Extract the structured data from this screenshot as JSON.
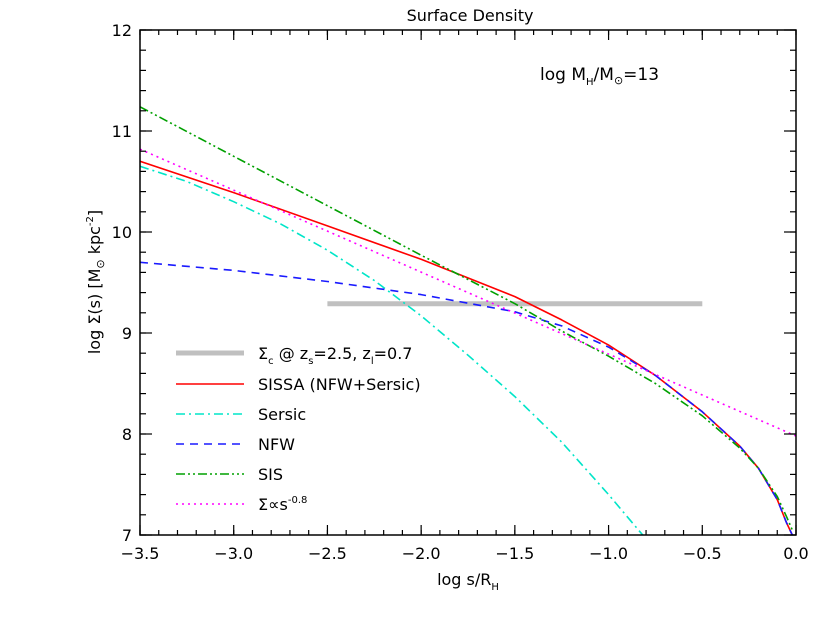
{
  "chart_data": {
    "type": "line",
    "title": "Surface Density",
    "xlabel": "log s/R",
    "xlabel_sub": "H",
    "ylabel": "log Σ(s) [M",
    "ylabel_sun": "⊙",
    "ylabel_tail": " kpc",
    "ylabel_exp": "-2",
    "ylabel_close": "]",
    "xlim": [
      -3.5,
      0.0
    ],
    "ylim": [
      7,
      12
    ],
    "xticks": [
      "−3.5",
      "−3.0",
      "−2.5",
      "−2.0",
      "−1.5",
      "−1.0",
      "−0.5",
      "0.0"
    ],
    "yticks": [
      "7",
      "8",
      "9",
      "10",
      "11",
      "12"
    ],
    "annotation": {
      "prefix": "log M",
      "sub1": "H",
      "mid": "/M",
      "sun": "⊙",
      "suffix": "=13"
    },
    "colors": {
      "sigma_c": "#c0c0c0",
      "sissa": "#ff0000",
      "sersic": "#00e5c8",
      "nfw": "#1a1aff",
      "sis": "#00a000",
      "powerlaw": "#ff00ff"
    },
    "legend": {
      "position": "lower-left",
      "entries": [
        {
          "key": "sigma_c",
          "label": "Σ",
          "sub": "c",
          "rest": " @ z",
          "sub2": "s",
          "rest2": "=2.5, z",
          "sub3": "l",
          "rest3": "=0.7"
        },
        {
          "key": "sissa",
          "label": "SISSA (NFW+Sersic)"
        },
        {
          "key": "sersic",
          "label": "Sersic"
        },
        {
          "key": "nfw",
          "label": "NFW"
        },
        {
          "key": "sis",
          "label": "SIS"
        },
        {
          "key": "powerlaw",
          "label": "Σ∝s",
          "sup": "-0.8"
        }
      ]
    },
    "series": [
      {
        "key": "sigma_c",
        "style": "solid-thick",
        "x": [
          -2.5,
          -0.5
        ],
        "y": [
          9.29,
          9.29
        ]
      },
      {
        "key": "sissa",
        "style": "solid",
        "x": [
          -3.5,
          -3.0,
          -2.5,
          -2.0,
          -1.5,
          -1.25,
          -1.0,
          -0.75,
          -0.5,
          -0.3,
          -0.2,
          -0.1,
          -0.05,
          -0.02
        ],
        "y": [
          10.7,
          10.39,
          10.06,
          9.73,
          9.36,
          9.13,
          8.88,
          8.58,
          8.22,
          7.88,
          7.66,
          7.35,
          7.12,
          7.0
        ]
      },
      {
        "key": "sersic",
        "style": "dashdot",
        "x": [
          -3.5,
          -3.25,
          -3.0,
          -2.75,
          -2.5,
          -2.25,
          -2.0,
          -1.75,
          -1.5,
          -1.25,
          -1.0,
          -0.9,
          -0.8
        ],
        "y": [
          10.65,
          10.5,
          10.3,
          10.08,
          9.82,
          9.52,
          9.17,
          8.78,
          8.37,
          7.92,
          7.4,
          7.18,
          6.96
        ]
      },
      {
        "key": "nfw",
        "style": "dashed",
        "x": [
          -3.5,
          -3.0,
          -2.5,
          -2.0,
          -1.5,
          -1.25,
          -1.0,
          -0.75,
          -0.5,
          -0.3,
          -0.2,
          -0.1,
          -0.05,
          -0.02
        ],
        "y": [
          9.7,
          9.62,
          9.51,
          9.38,
          9.21,
          9.07,
          8.86,
          8.58,
          8.22,
          7.88,
          7.66,
          7.35,
          7.12,
          7.0
        ]
      },
      {
        "key": "sis",
        "style": "dashdotdot",
        "x": [
          -3.5,
          -3.0,
          -2.5,
          -2.0,
          -1.5,
          -1.25,
          -1.0,
          -0.75,
          -0.5,
          -0.3,
          -0.2,
          -0.1,
          -0.05,
          -0.02
        ],
        "y": [
          11.24,
          10.75,
          10.26,
          9.77,
          9.29,
          9.02,
          8.77,
          8.5,
          8.18,
          7.86,
          7.66,
          7.38,
          7.18,
          7.05
        ]
      },
      {
        "key": "powerlaw",
        "style": "dotted",
        "x": [
          -3.5,
          0.0
        ],
        "y": [
          10.82,
          7.98
        ]
      }
    ]
  }
}
